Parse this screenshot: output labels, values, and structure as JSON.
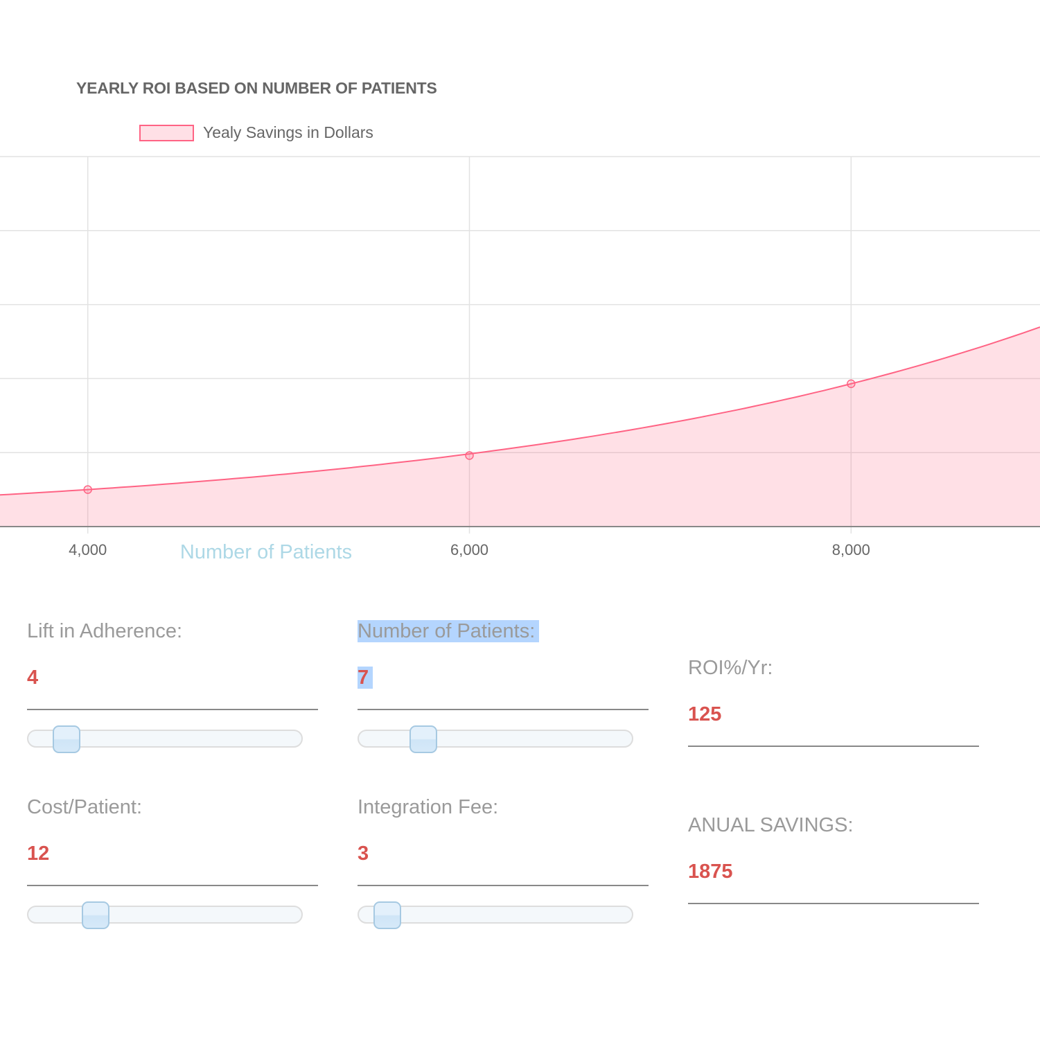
{
  "chart_data": {
    "type": "area",
    "title": "YEARLY ROI BASED ON NUMBER OF PATIENTS",
    "xlabel": "Number of Patients",
    "ylabel": "",
    "series": [
      {
        "name": "Yealy Savings in Dollars",
        "x": [
          4000,
          6000,
          8000
        ],
        "values": [
          0.5,
          0.96,
          1.93
        ]
      }
    ],
    "x_ticks": [
      "4,000",
      "6,000",
      "8,000"
    ],
    "xlim": [
      3540,
      8990
    ],
    "ylim": [
      0,
      5
    ],
    "grid": true,
    "legend": "top",
    "line_color": "#ff6384",
    "fill_color": "rgba(255,99,132,0.2)"
  },
  "controls": {
    "lift": {
      "label": "Lift in Adherence:",
      "value": "4",
      "slider_fraction": 0.14
    },
    "patients": {
      "label": "Number of Patients:",
      "value": "7",
      "slider_fraction": 0.235
    },
    "cost": {
      "label": "Cost/Patient:",
      "value": "12",
      "slider_fraction": 0.245
    },
    "fee": {
      "label": "Integration Fee:",
      "value": "3",
      "slider_fraction": 0.105
    }
  },
  "outputs": {
    "roi": {
      "label": "ROI%/Yr:",
      "value": "125"
    },
    "savings": {
      "label": "ANUAL SAVINGS:",
      "value": "1875"
    }
  },
  "colors": {
    "value_red": "#d9534f",
    "label_gray": "#9a9a9a",
    "axis_title_blue": "#add8e6",
    "selection_blue": "#b4d5fe"
  }
}
